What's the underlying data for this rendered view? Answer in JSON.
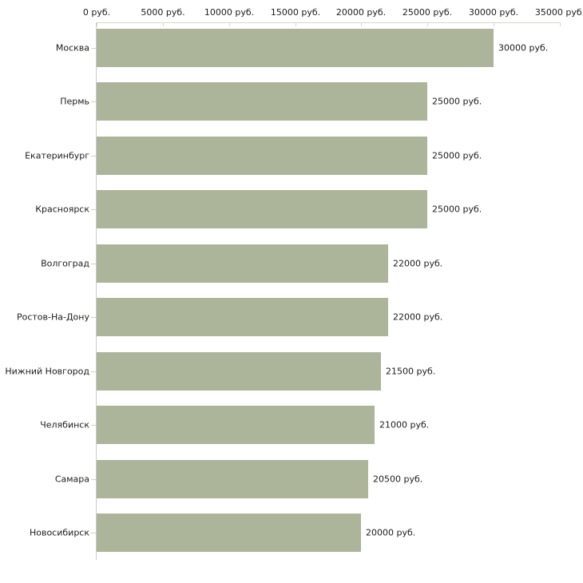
{
  "chart_data": {
    "type": "bar",
    "orientation": "horizontal",
    "title": "",
    "xlabel": "",
    "ylabel": "",
    "categories": [
      "Москва",
      "Пермь",
      "Екатеринбург",
      "Красноярск",
      "Волгоград",
      "Ростов-На-Дону",
      "Нижний Новгород",
      "Челябинск",
      "Самара",
      "Новосибирск"
    ],
    "values": [
      30000,
      25000,
      25000,
      25000,
      22000,
      22000,
      21500,
      21000,
      20500,
      20000
    ],
    "value_labels": [
      "30000 руб.",
      "25000 руб.",
      "25000 руб.",
      "25000 руб.",
      "22000 руб.",
      "22000 руб.",
      "21500 руб.",
      "21000 руб.",
      "20500 руб.",
      "20000 руб."
    ],
    "x_ticks": [
      0,
      5000,
      10000,
      15000,
      20000,
      25000,
      30000,
      35000
    ],
    "x_tick_labels": [
      "0 руб.",
      "5000 руб.",
      "10000 руб.",
      "15000 руб.",
      "20000 руб.",
      "25000 руб.",
      "30000 руб.",
      "35000 руб."
    ],
    "xlim": [
      0,
      35000
    ],
    "grid": false,
    "legend": null,
    "axis_position": "top",
    "colors": {
      "bar": "#acb49a",
      "top_axis": "#d8d8c6",
      "left_axis": "#cbcbcb",
      "category_tick": "#d8cfbd",
      "text": "#1c1c1c",
      "background": "#ffffff"
    }
  }
}
